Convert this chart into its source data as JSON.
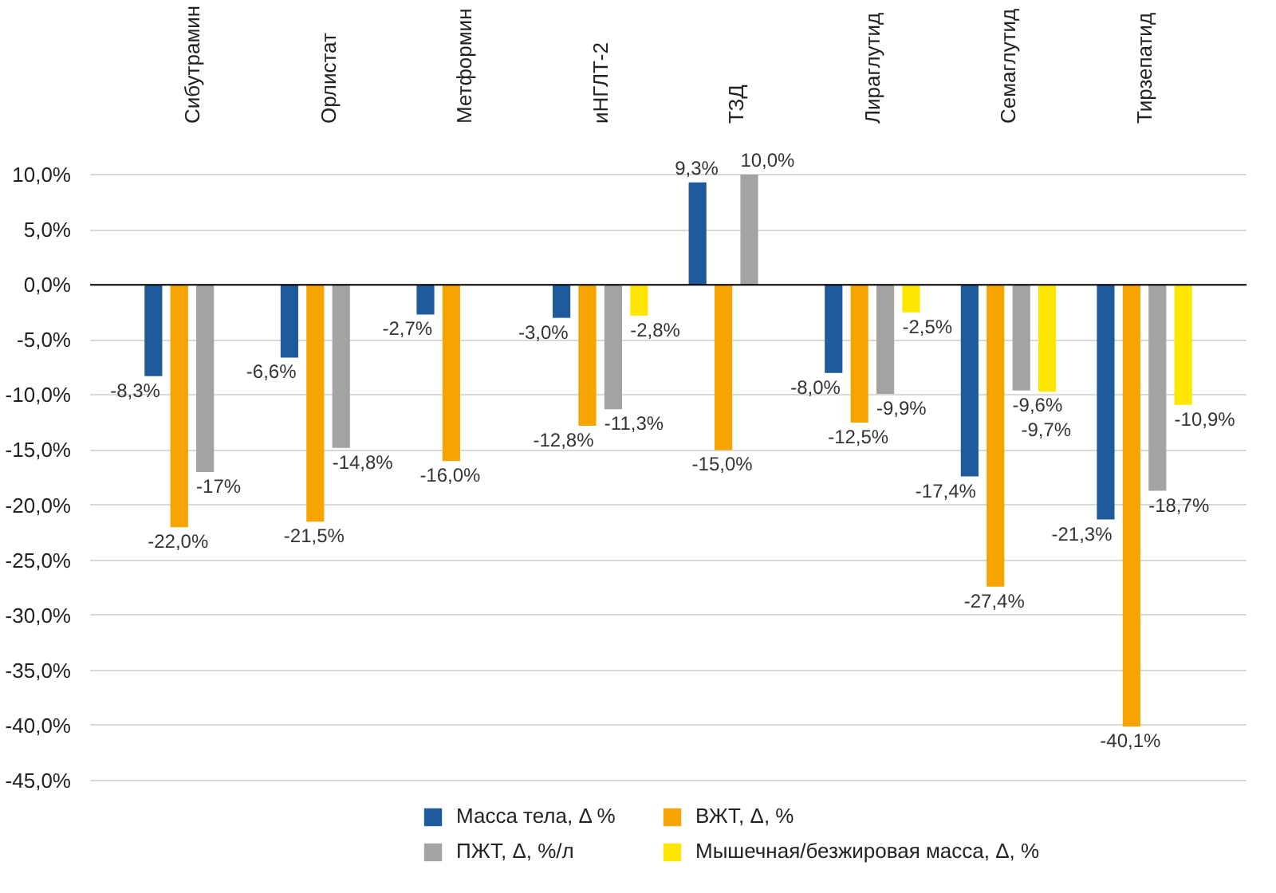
{
  "chart_data": {
    "type": "bar",
    "categories": [
      "Сибутрамин",
      "Орлистат",
      "Метформин",
      "иНГЛТ-2",
      "ТЗД",
      "Лираглутид",
      "Семаглутид",
      "Тирзепатид"
    ],
    "series": [
      {
        "name": "Масса тела, Δ %",
        "color": "#1f5b9b",
        "values": [
          -8.3,
          -6.6,
          -2.7,
          -3.0,
          9.3,
          -8.0,
          -17.4,
          -21.3
        ],
        "value_labels": [
          "-8,3%",
          "-6,6%",
          "-2,7%",
          "-3,0%",
          "9,3%",
          "-8,0%",
          "-17,4%",
          "-21,3%"
        ]
      },
      {
        "name": "ВЖТ, Δ, %",
        "color": "#f5a400",
        "values": [
          -22.0,
          -21.5,
          -16.0,
          -12.8,
          -15.0,
          -12.5,
          -27.4,
          -40.1
        ],
        "value_labels": [
          "-22,0%",
          "-21,5%",
          "-16,0%",
          "-12,8%",
          "-15,0%",
          "-12,5%",
          "-27,4%",
          "-40,1%"
        ]
      },
      {
        "name": "ПЖТ, Δ, %/л",
        "color": "#a3a3a3",
        "values": [
          -17,
          -14.8,
          null,
          -11.3,
          10.0,
          -9.9,
          -9.6,
          -18.7
        ],
        "value_labels": [
          "-17%",
          "-14,8%",
          null,
          "-11,3%",
          "10,0%",
          "-9,9%",
          "-9,6%",
          "-18,7%"
        ]
      },
      {
        "name": "Мышечная/безжировая масса, Δ, %",
        "color": "#ffe600",
        "values": [
          null,
          null,
          null,
          -2.8,
          null,
          -2.5,
          -9.7,
          -10.9
        ],
        "value_labels": [
          null,
          null,
          null,
          "-2,8%",
          null,
          "-2,5%",
          "-9,7%",
          "-10,9%"
        ]
      }
    ],
    "ylim": [
      -45,
      10
    ],
    "yticks": [
      {
        "value": 10,
        "label": "10,0%"
      },
      {
        "value": 5,
        "label": "5,0%"
      },
      {
        "value": 0,
        "label": "0,0%"
      },
      {
        "value": -5,
        "label": "-5,0%"
      },
      {
        "value": -10,
        "label": "-10,0%"
      },
      {
        "value": -15,
        "label": "-15,0%"
      },
      {
        "value": -20,
        "label": "-20,0%"
      },
      {
        "value": -25,
        "label": "-25,0%"
      },
      {
        "value": -30,
        "label": "-30,0%"
      },
      {
        "value": -35,
        "label": "-35,0%"
      },
      {
        "value": -40,
        "label": "-40,0%"
      },
      {
        "value": -45,
        "label": "-45,0%"
      }
    ],
    "ref_lines": [
      {
        "axis": "y",
        "value": 0,
        "color": "#000000"
      }
    ],
    "grid": "y",
    "legend": "bottom"
  }
}
